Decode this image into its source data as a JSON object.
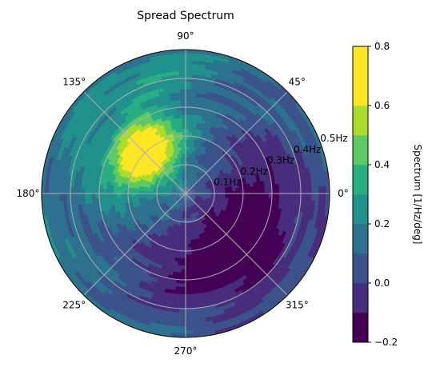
{
  "chart_data": {
    "type": "heatmap",
    "projection": "polar",
    "title": "Spread Spectrum",
    "angle_ticks": [
      "0°",
      "45°",
      "90°",
      "135°",
      "180°",
      "225°",
      "270°",
      "315°"
    ],
    "angle_values_deg": [
      0,
      45,
      90,
      135,
      180,
      225,
      270,
      315
    ],
    "radial_ticks": [
      "0.1Hz",
      "0.2Hz",
      "0.3Hz",
      "0.4Hz",
      "0.5Hz"
    ],
    "radial_values": [
      0.1,
      0.2,
      0.3,
      0.4,
      0.5
    ],
    "rlim": [
      0,
      0.5
    ],
    "grid": true,
    "colormap": "viridis",
    "colorbar": {
      "label": "Spectrum [1/Hz/deg]",
      "levels": [
        -0.2,
        -0.1,
        0.0,
        0.1,
        0.2,
        0.3,
        0.4,
        0.5,
        0.6,
        0.7,
        0.8
      ],
      "tick_values": [
        -0.2,
        0.0,
        0.2,
        0.4,
        0.6,
        0.8
      ],
      "tick_labels": [
        "−0.2",
        "0.0",
        "0.2",
        "0.4",
        "0.6",
        "0.8"
      ],
      "colors": [
        "#440154",
        "#472d7b",
        "#3b528b",
        "#2c728e",
        "#21918c",
        "#28ae80",
        "#5ec962",
        "#addc30",
        "#fde725",
        "#fde725"
      ]
    },
    "peak": {
      "direction_deg": 135,
      "frequency_hz": 0.2,
      "value": 0.75
    },
    "minimum_region": {
      "direction_deg": 315,
      "frequency_hz": 0.25,
      "value": -0.15
    }
  }
}
